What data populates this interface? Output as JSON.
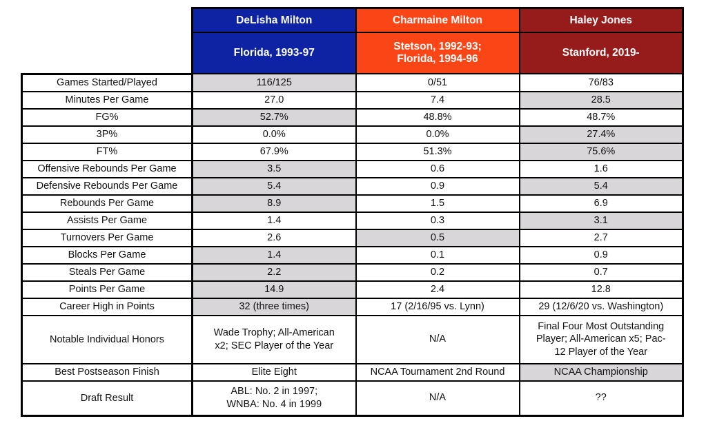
{
  "colors": {
    "delisha_header": "#0D23A4",
    "charmaine_header": "#FA4616",
    "haley_header": "#961B1B",
    "shaded_cell": "#D9D6D9",
    "header_text": "#FFFFFF",
    "border": "#000000"
  },
  "chart_data": {
    "type": "table",
    "legend_note": "gray-shaded cell = best value in row",
    "players": [
      {
        "name": "DeLisha Milton",
        "school": "Florida, 1993-97",
        "header_color": "#0D23A4"
      },
      {
        "name": "Charmaine Milton",
        "school": "Stetson, 1992-93;\nFlorida, 1994-96",
        "header_color": "#FA4616"
      },
      {
        "name": "Haley Jones",
        "school": "Stanford, 2019-",
        "header_color": "#961B1B"
      }
    ],
    "rows": [
      {
        "label": "Games Started/Played",
        "values": [
          "116/125",
          "0/51",
          "76/83"
        ],
        "highlighted": [
          true,
          false,
          false
        ]
      },
      {
        "label": "Minutes Per Game",
        "values": [
          "27.0",
          "7.4",
          "28.5"
        ],
        "highlighted": [
          false,
          false,
          true
        ]
      },
      {
        "label": "FG%",
        "values": [
          "52.7%",
          "48.8%",
          "48.7%"
        ],
        "highlighted": [
          true,
          false,
          false
        ]
      },
      {
        "label": "3P%",
        "values": [
          "0.0%",
          "0.0%",
          "27.4%"
        ],
        "highlighted": [
          false,
          false,
          true
        ]
      },
      {
        "label": "FT%",
        "values": [
          "67.9%",
          "51.3%",
          "75.6%"
        ],
        "highlighted": [
          false,
          false,
          true
        ]
      },
      {
        "label": "Offensive Rebounds Per Game",
        "values": [
          "3.5",
          "0.6",
          "1.6"
        ],
        "highlighted": [
          true,
          false,
          false
        ]
      },
      {
        "label": "Defensive Rebounds Per Game",
        "values": [
          "5.4",
          "0.9",
          "5.4"
        ],
        "highlighted": [
          true,
          false,
          true
        ]
      },
      {
        "label": "Rebounds Per Game",
        "values": [
          "8.9",
          "1.5",
          "6.9"
        ],
        "highlighted": [
          true,
          false,
          false
        ]
      },
      {
        "label": "Assists Per Game",
        "values": [
          "1.4",
          "0.3",
          "3.1"
        ],
        "highlighted": [
          false,
          false,
          true
        ]
      },
      {
        "label": "Turnovers Per Game",
        "values": [
          "2.6",
          "0.5",
          "2.7"
        ],
        "highlighted": [
          false,
          true,
          false
        ]
      },
      {
        "label": "Blocks Per Game",
        "values": [
          "1.4",
          "0.1",
          "0.9"
        ],
        "highlighted": [
          true,
          false,
          false
        ]
      },
      {
        "label": "Steals Per Game",
        "values": [
          "2.2",
          "0.2",
          "0.7"
        ],
        "highlighted": [
          true,
          false,
          false
        ]
      },
      {
        "label": "Points Per Game",
        "values": [
          "14.9",
          "2.4",
          "12.8"
        ],
        "highlighted": [
          true,
          false,
          false
        ]
      },
      {
        "label": "Career High in Points",
        "values": [
          "32 (three times)",
          "17 (2/16/95 vs. Lynn)",
          "29 (12/6/20 vs. Washington)"
        ],
        "highlighted": [
          true,
          false,
          false
        ]
      },
      {
        "label": "Notable Individual Honors",
        "values": [
          "Wade Trophy; All-American\nx2; SEC Player of the Year",
          "N/A",
          "Final Four Most Outstanding\nPlayer; All-American x5; Pac-\n12 Player of the Year"
        ],
        "highlighted": [
          false,
          false,
          false
        ]
      },
      {
        "label": "Best Postseason Finish",
        "values": [
          "Elite Eight",
          "NCAA Tournament 2nd Round",
          "NCAA Championship"
        ],
        "highlighted": [
          false,
          false,
          true
        ]
      },
      {
        "label": "Draft Result",
        "values": [
          "ABL: No. 2 in 1997;\nWNBA: No. 4 in 1999",
          "N/A",
          "??"
        ],
        "highlighted": [
          false,
          false,
          false
        ]
      }
    ]
  }
}
